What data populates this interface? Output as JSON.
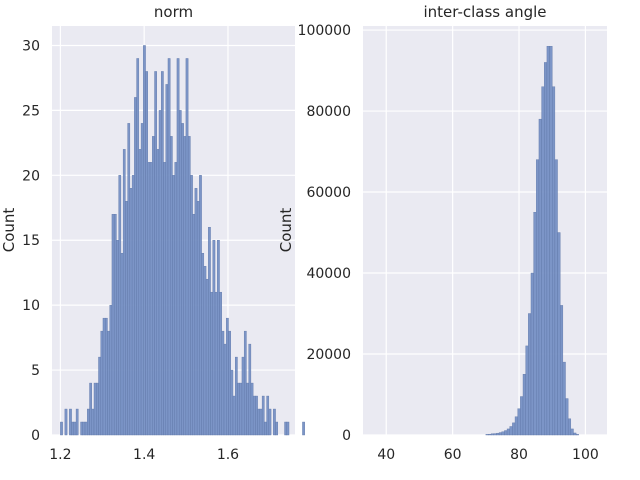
{
  "chart_data": [
    {
      "type": "bar",
      "title": "norm",
      "xlabel": "",
      "ylabel": "Count",
      "xlim": [
        1.18,
        1.76
      ],
      "ylim": [
        0,
        31.5
      ],
      "xticks": [
        1.2,
        1.4,
        1.6
      ],
      "yticks": [
        0,
        5,
        10,
        15,
        20,
        25,
        30
      ],
      "xtick_labels": [
        "1.2",
        "1.4",
        "1.6"
      ],
      "ytick_labels": [
        "0",
        "5",
        "10",
        "15",
        "20",
        "25",
        "30"
      ],
      "grid": true,
      "bin_start": 1.2,
      "bin_width": 0.00535,
      "values": [
        1,
        0,
        2,
        0,
        2,
        1,
        1,
        2,
        0,
        1,
        1,
        1,
        2,
        4,
        2,
        4,
        4,
        6,
        8,
        9,
        9,
        8,
        10,
        17,
        17,
        15,
        20,
        14,
        22,
        18,
        24,
        19,
        20,
        26,
        29,
        22,
        24,
        30,
        28,
        21,
        21,
        23,
        28,
        22,
        25,
        28,
        21,
        27,
        29,
        23,
        20,
        21,
        29,
        25,
        24,
        23,
        29,
        23,
        20,
        17,
        19,
        18,
        20,
        14,
        13,
        12,
        16,
        11,
        15,
        11,
        15,
        11,
        8,
        7,
        9,
        8,
        5,
        3,
        6,
        4,
        4,
        6,
        8,
        4,
        7,
        4,
        3,
        3,
        2,
        2,
        3,
        1,
        3,
        2,
        0,
        2,
        1,
        0,
        0,
        0,
        1,
        1,
        0,
        0,
        0,
        0,
        0,
        0,
        1
      ],
      "colors": {
        "bar": "#7690c4",
        "background": "#eaeaf2"
      }
    },
    {
      "type": "bar",
      "title": "inter-class angle",
      "xlabel": "",
      "ylabel": "Count",
      "xlim": [
        33,
        106.5
      ],
      "ylim": [
        0,
        101000
      ],
      "xticks": [
        40,
        60,
        80,
        100
      ],
      "yticks": [
        0,
        20000,
        40000,
        60000,
        80000,
        100000
      ],
      "xtick_labels": [
        "40",
        "60",
        "80",
        "100"
      ],
      "ytick_labels": [
        "0",
        "20000",
        "40000",
        "60000",
        "80000",
        "100000"
      ],
      "grid": true,
      "bin_start": 70,
      "bin_width": 0.8,
      "values": [
        150,
        200,
        300,
        350,
        450,
        600,
        800,
        1100,
        1500,
        2100,
        3000,
        4500,
        6500,
        9500,
        15000,
        22000,
        30000,
        40000,
        55000,
        68000,
        78000,
        86000,
        92000,
        96000,
        96000,
        86000,
        68000,
        50000,
        32000,
        18000,
        9000,
        4000,
        1500,
        500,
        150
      ],
      "colors": {
        "bar": "#7690c4",
        "background": "#eaeaf2"
      }
    }
  ]
}
